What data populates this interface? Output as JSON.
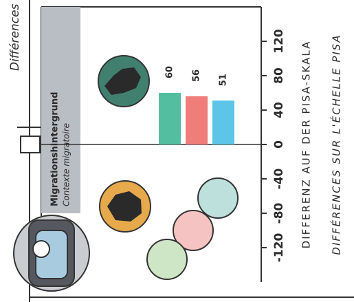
{
  "chart_data": {
    "type": "bar",
    "section_title": "Différences",
    "title": "Migrationshintergrund",
    "subtitle": "Contexte migratoire",
    "y_label": "DIFFERENZ AUF DER PISA-SKALA",
    "y_label_fr": "DIFFÉRENCES SUR L'ÉCHELLE PISA",
    "values": [
      60,
      56,
      51
    ],
    "colors": [
      "#53bfa0",
      "#f07d79",
      "#5cc5e8"
    ],
    "ylim": [
      -160,
      160
    ],
    "yticks": [
      -120,
      -80,
      -40,
      0,
      40,
      80,
      120
    ]
  }
}
